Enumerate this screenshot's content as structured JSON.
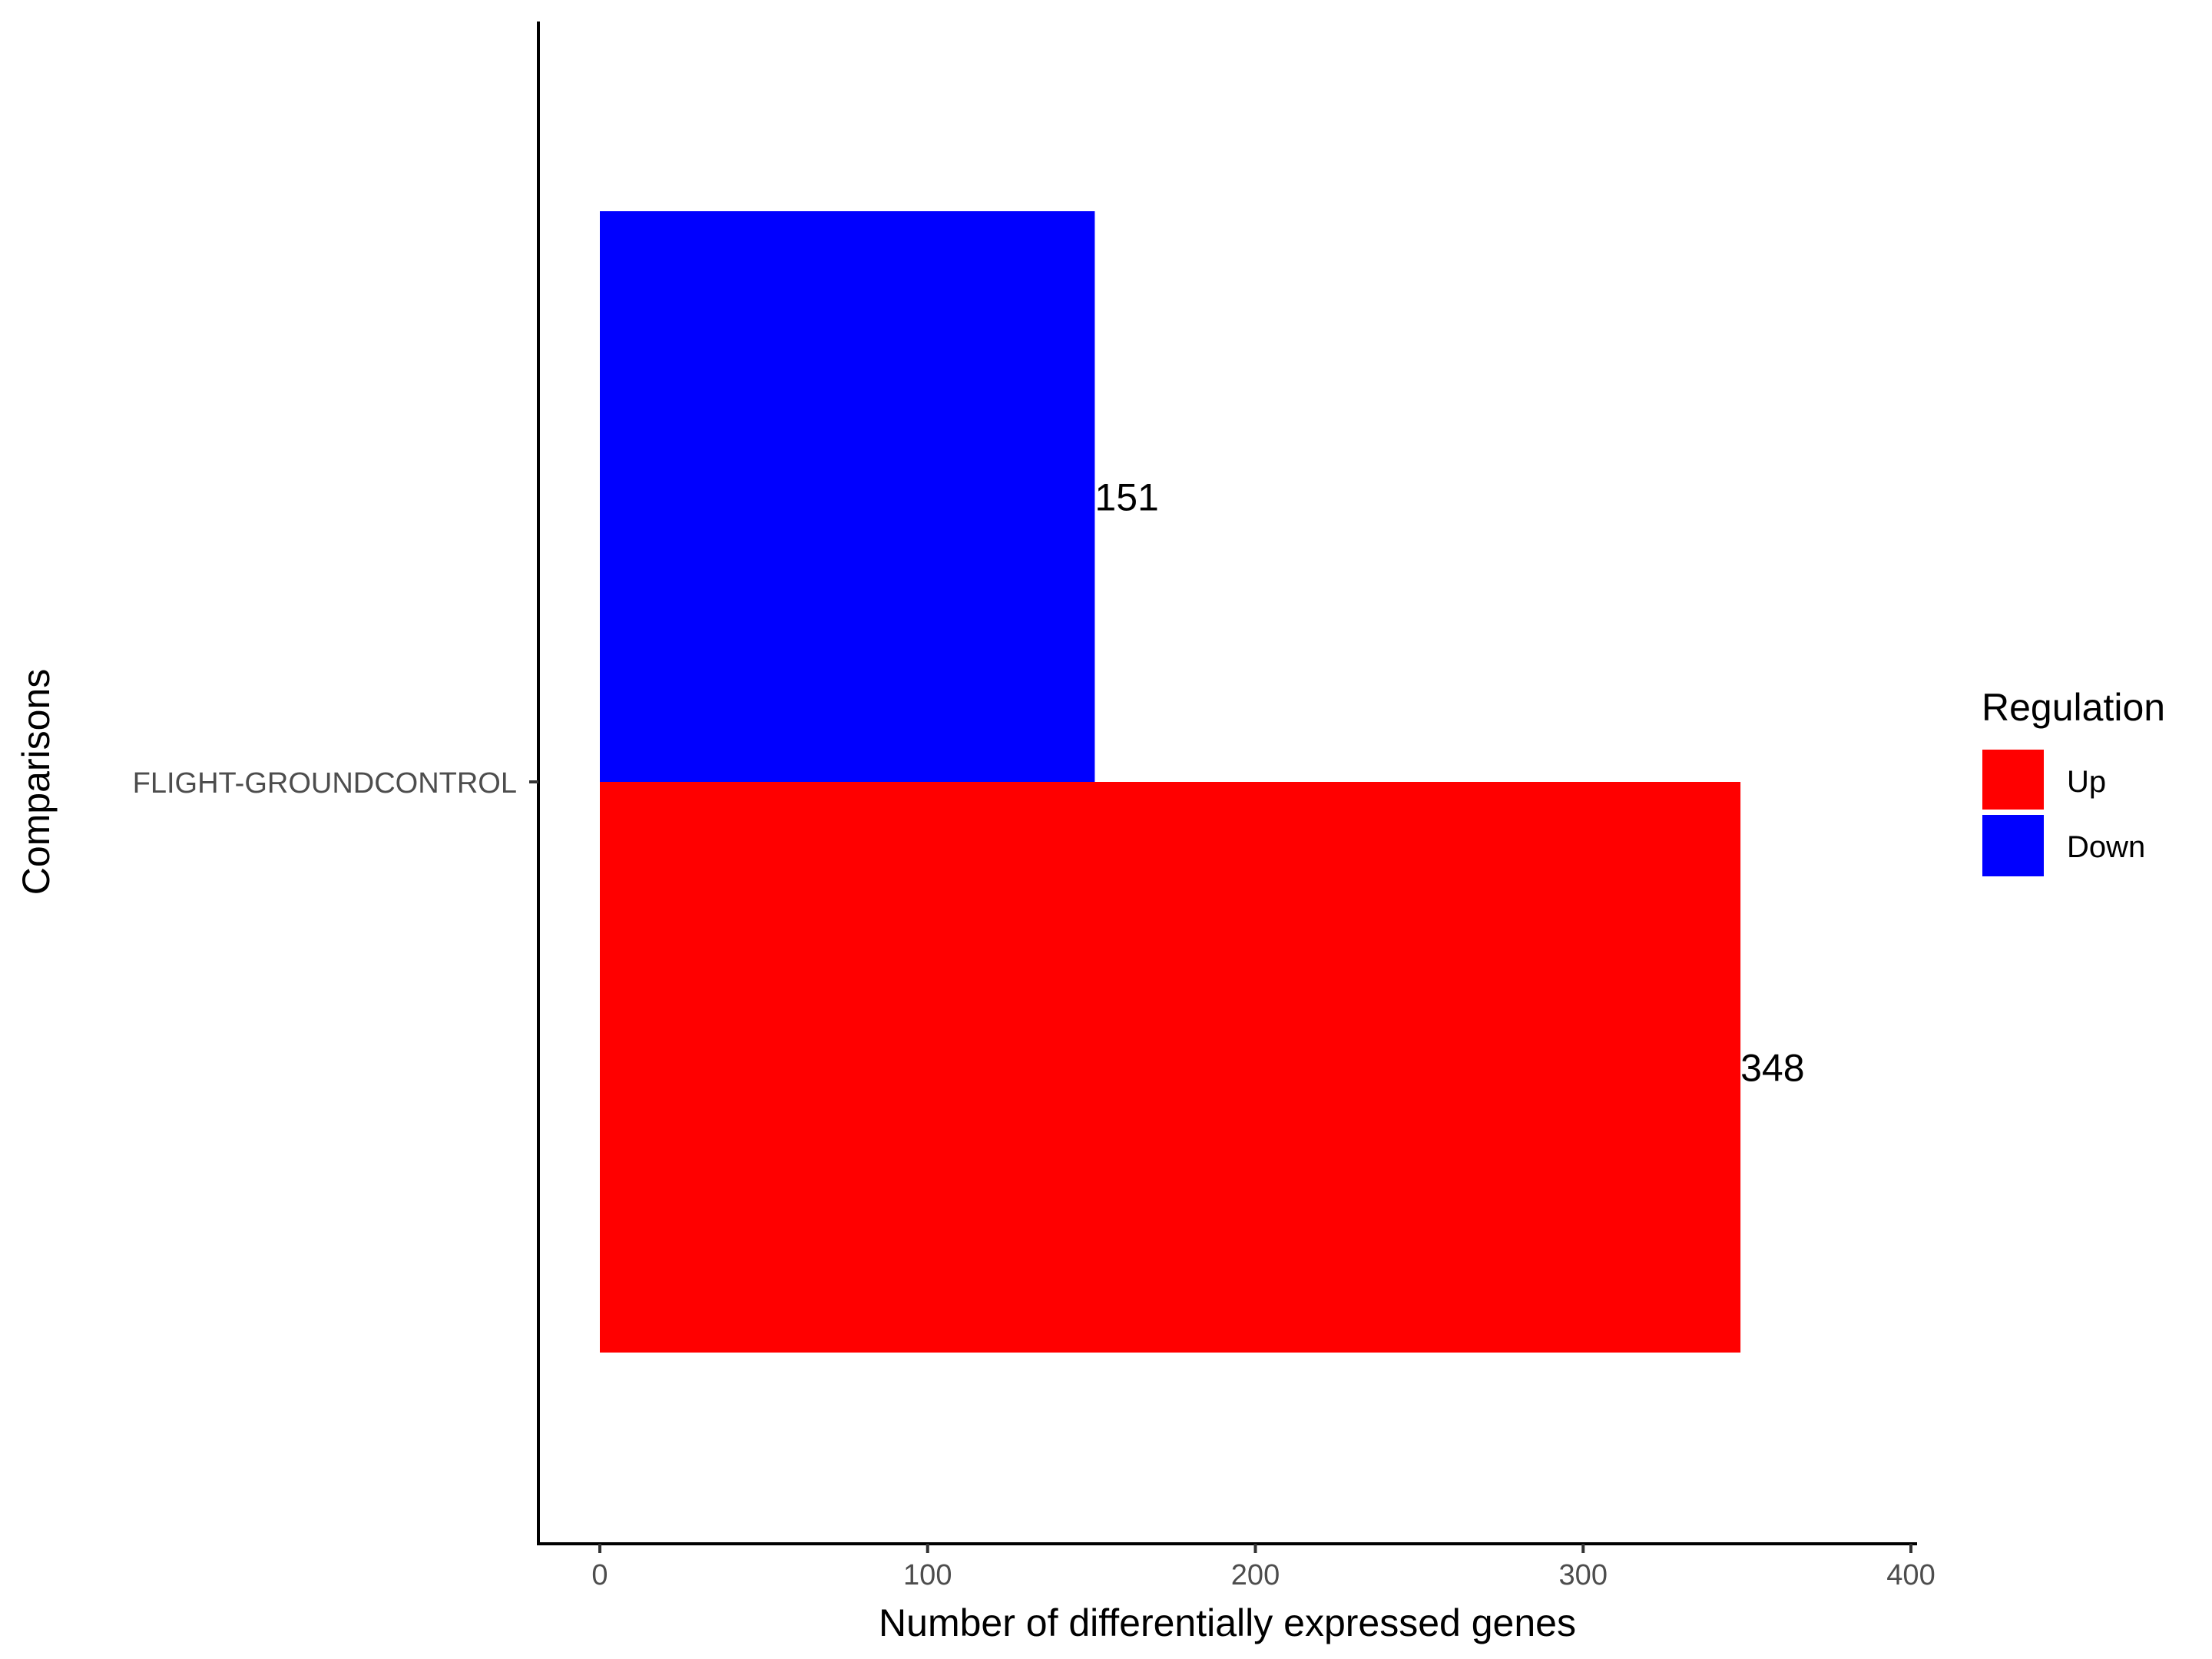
{
  "chart_data": {
    "type": "bar",
    "orientation": "horizontal",
    "categories": [
      "FLIGHT-GROUNDCONTROL"
    ],
    "series": [
      {
        "name": "Up",
        "values": [
          348
        ],
        "color": "#FF0000"
      },
      {
        "name": "Down",
        "values": [
          151
        ],
        "color": "#0000FF"
      }
    ],
    "data_labels": [
      "348",
      "151"
    ],
    "xlabel": "Number of differentially expressed genes",
    "ylabel": "Comparisons",
    "xlim": [
      0,
      400
    ],
    "xticks": [
      "0",
      "100",
      "200",
      "300",
      "400"
    ],
    "grid": false,
    "legend": {
      "title": "Regulation",
      "entries": [
        "Up",
        "Down"
      ],
      "placement": "right"
    }
  }
}
